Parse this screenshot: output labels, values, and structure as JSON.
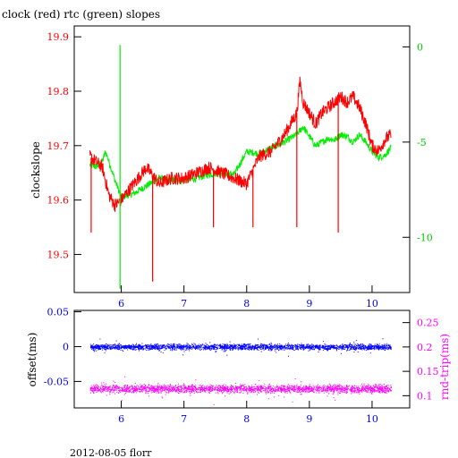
{
  "chart_data": [
    {
      "type": "line",
      "title": "clock (red) rtc (green) slopes",
      "ylabel": "clockslope",
      "xlim": [
        5.25,
        10.6
      ],
      "ylim": [
        19.43,
        19.92
      ],
      "y2lim": [
        -12.9,
        1.1
      ],
      "x_ticks": [
        "6",
        "7",
        "8",
        "9",
        "10"
      ],
      "y_ticks": [
        "19.5",
        "19.6",
        "19.7",
        "19.8",
        "19.9"
      ],
      "y2_ticks": [
        "0",
        "-5",
        "-10"
      ],
      "colors": {
        "clock": "#ff0000",
        "rtc": "#00ee00",
        "left_axis": "#ff0000",
        "right_axis": "#00cc00",
        "x_axis": "#0000ff"
      },
      "series": [
        {
          "axis": "left",
          "color": "#ff0000",
          "x": [
            5.5,
            5.6,
            5.7,
            5.8,
            5.9,
            6.0,
            6.2,
            6.4,
            6.6,
            6.8,
            7.0,
            7.2,
            7.4,
            7.6,
            7.8,
            8.0,
            8.2,
            8.4,
            8.6,
            8.8,
            8.85,
            8.9,
            9.0,
            9.1,
            9.2,
            9.3,
            9.4,
            9.5,
            9.6,
            9.7,
            9.8,
            9.9,
            10.0,
            10.1,
            10.2,
            10.3
          ],
          "y": [
            19.68,
            19.67,
            19.66,
            19.61,
            19.59,
            19.6,
            19.63,
            19.66,
            19.63,
            19.64,
            19.64,
            19.65,
            19.66,
            19.65,
            19.64,
            19.63,
            19.68,
            19.69,
            19.72,
            19.76,
            19.82,
            19.78,
            19.76,
            19.74,
            19.76,
            19.77,
            19.78,
            19.79,
            19.78,
            19.79,
            19.77,
            19.74,
            19.7,
            19.69,
            19.71,
            19.72
          ]
        },
        {
          "axis": "right",
          "color": "#00ee00",
          "x": [
            5.5,
            5.6,
            5.7,
            5.75,
            5.8,
            5.9,
            6.0,
            6.2,
            6.4,
            6.6,
            6.8,
            7.0,
            7.2,
            7.4,
            7.6,
            7.8,
            8.0,
            8.2,
            8.4,
            8.6,
            8.8,
            8.9,
            9.0,
            9.1,
            9.2,
            9.3,
            9.4,
            9.5,
            9.6,
            9.7,
            9.8,
            9.9,
            10.0,
            10.1,
            10.2,
            10.3
          ],
          "y": [
            -6.2,
            -6.3,
            -6.0,
            -5.5,
            -6.0,
            -7.0,
            -7.9,
            -7.7,
            -7.3,
            -6.9,
            -7.0,
            -7.0,
            -6.9,
            -6.7,
            -6.6,
            -6.7,
            -5.5,
            -5.6,
            -5.3,
            -5.0,
            -4.6,
            -4.2,
            -4.7,
            -5.2,
            -5.0,
            -4.8,
            -4.9,
            -4.6,
            -4.7,
            -5.0,
            -4.6,
            -5.0,
            -5.5,
            -5.8,
            -5.7,
            -5.3
          ]
        }
      ],
      "spikes": [
        {
          "series": "rtc",
          "x": 5.98,
          "y": 0.1
        },
        {
          "series": "rtc",
          "x": 5.98,
          "y": -12.7
        },
        {
          "series": "clock",
          "x": 6.5,
          "y": 19.45
        },
        {
          "series": "clock",
          "x": 7.47,
          "y": 19.55
        },
        {
          "series": "clock",
          "x": 8.1,
          "y": 19.55
        },
        {
          "series": "clock",
          "x": 8.8,
          "y": 19.55
        },
        {
          "series": "clock",
          "x": 9.46,
          "y": 19.54
        },
        {
          "series": "clock",
          "x": 5.52,
          "y": 19.54
        }
      ]
    },
    {
      "type": "scatter",
      "ylabel": "offset(ms)",
      "y2label": "rnd-trip(ms)",
      "xlim": [
        5.25,
        10.6
      ],
      "ylim": [
        -0.088,
        0.052
      ],
      "y2lim": [
        0.075,
        0.275
      ],
      "x_ticks": [
        "6",
        "7",
        "8",
        "9",
        "10"
      ],
      "y_ticks": [
        "0.05",
        "0",
        "-0.05"
      ],
      "y2_ticks": [
        "0.25",
        "0.2",
        "0.15",
        "0.1"
      ],
      "colors": {
        "offset": "#0000ff",
        "round_trip": "#ff00ff"
      },
      "series": [
        {
          "axis": "left",
          "color": "#0000ff",
          "x_range": [
            5.5,
            10.3
          ],
          "center": 0.0,
          "spread": 0.006
        },
        {
          "axis": "right",
          "color": "#ff00ff",
          "x_range": [
            5.5,
            10.3
          ],
          "center": 0.115,
          "spread": 0.012
        }
      ]
    }
  ],
  "footer": {
    "text": "2012-08-05 florr"
  }
}
